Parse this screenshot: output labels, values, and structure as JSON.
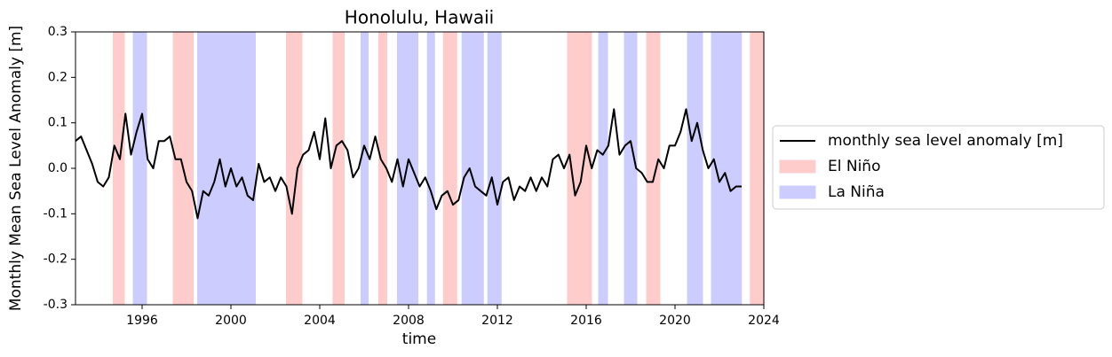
{
  "chart_data": {
    "type": "line",
    "title": "Honolulu, Hawaii",
    "xlabel": "time",
    "ylabel": "Monthly Mean Sea Level Anomaly [m]",
    "xlim": [
      1993,
      2024
    ],
    "ylim": [
      -0.3,
      0.3
    ],
    "xticks": [
      1996,
      2000,
      2004,
      2008,
      2012,
      2016,
      2020,
      2024
    ],
    "yticks": [
      -0.3,
      -0.2,
      -0.1,
      {
        "value": 0,
        "label": "0.0"
      },
      0.1,
      0.2,
      0.3
    ],
    "legend": "right",
    "x": [
      1993.0,
      1993.25,
      1993.5,
      1993.75,
      1994.0,
      1994.25,
      1994.5,
      1994.75,
      1995.0,
      1995.25,
      1995.5,
      1995.75,
      1996.0,
      1996.25,
      1996.5,
      1996.75,
      1997.0,
      1997.25,
      1997.5,
      1997.75,
      1998.0,
      1998.25,
      1998.5,
      1998.75,
      1999.0,
      1999.25,
      1999.5,
      1999.75,
      2000.0,
      2000.25,
      2000.5,
      2000.75,
      2001.0,
      2001.25,
      2001.5,
      2001.75,
      2002.0,
      2002.25,
      2002.5,
      2002.75,
      2003.0,
      2003.25,
      2003.5,
      2003.75,
      2004.0,
      2004.25,
      2004.5,
      2004.75,
      2005.0,
      2005.25,
      2005.5,
      2005.75,
      2006.0,
      2006.25,
      2006.5,
      2006.75,
      2007.0,
      2007.25,
      2007.5,
      2007.75,
      2008.0,
      2008.25,
      2008.5,
      2008.75,
      2009.0,
      2009.25,
      2009.5,
      2009.75,
      2010.0,
      2010.25,
      2010.5,
      2010.75,
      2011.0,
      2011.25,
      2011.5,
      2011.75,
      2012.0,
      2012.25,
      2012.5,
      2012.75,
      2013.0,
      2013.25,
      2013.5,
      2013.75,
      2014.0,
      2014.25,
      2014.5,
      2014.75,
      2015.0,
      2015.25,
      2015.5,
      2015.75,
      2016.0,
      2016.25,
      2016.5,
      2016.75,
      2017.0,
      2017.25,
      2017.5,
      2017.75,
      2018.0,
      2018.25,
      2018.5,
      2018.75,
      2019.0,
      2019.25,
      2019.5,
      2019.75,
      2020.0,
      2020.25,
      2020.5,
      2020.75,
      2021.0,
      2021.25,
      2021.5,
      2021.75,
      2022.0,
      2022.25,
      2022.5,
      2022.75,
      2023.0
    ],
    "series": [
      {
        "name": "monthly sea level anomaly [m]",
        "color": "#000000",
        "values": [
          0.06,
          0.07,
          0.04,
          0.01,
          -0.03,
          -0.04,
          -0.02,
          0.05,
          0.02,
          0.12,
          0.03,
          0.08,
          0.12,
          0.02,
          0.0,
          0.06,
          0.06,
          0.07,
          0.02,
          0.02,
          -0.03,
          -0.05,
          -0.11,
          -0.05,
          -0.06,
          -0.03,
          0.02,
          -0.04,
          0.0,
          -0.04,
          -0.02,
          -0.06,
          -0.07,
          0.01,
          -0.03,
          -0.02,
          -0.05,
          -0.02,
          -0.04,
          -0.1,
          0.0,
          0.03,
          0.04,
          0.08,
          0.02,
          0.11,
          0.0,
          0.05,
          0.06,
          0.04,
          -0.02,
          0.0,
          0.05,
          0.02,
          0.07,
          0.02,
          0.0,
          -0.03,
          0.02,
          -0.04,
          0.02,
          -0.01,
          -0.04,
          -0.02,
          -0.05,
          -0.09,
          -0.06,
          -0.05,
          -0.08,
          -0.07,
          -0.02,
          0.0,
          -0.04,
          -0.05,
          -0.06,
          -0.02,
          -0.08,
          -0.03,
          -0.02,
          -0.07,
          -0.04,
          -0.05,
          -0.02,
          -0.05,
          -0.02,
          -0.04,
          0.02,
          0.03,
          0.0,
          0.03,
          -0.06,
          -0.03,
          0.05,
          0.0,
          0.04,
          0.03,
          0.05,
          0.13,
          0.03,
          0.05,
          0.06,
          0.0,
          -0.01,
          -0.03,
          -0.03,
          0.02,
          0.0,
          0.05,
          0.05,
          0.08,
          0.13,
          0.06,
          0.1,
          0.04,
          0.0,
          0.02,
          -0.03,
          -0.01,
          -0.05,
          -0.04,
          -0.04
        ]
      }
    ],
    "spans": [
      {
        "name": "El Niño",
        "color": "#ffcccc",
        "ranges": [
          [
            1994.7,
            1995.2
          ],
          [
            1997.4,
            1998.3
          ],
          [
            2002.5,
            2003.2
          ],
          [
            2004.6,
            2005.1
          ],
          [
            2006.66,
            2007.02
          ],
          [
            2009.57,
            2010.17
          ],
          [
            2015.16,
            2016.24
          ],
          [
            2018.72,
            2019.32
          ],
          [
            2023.39,
            2024
          ]
        ]
      },
      {
        "name": "La Niña",
        "color": "#ccccff",
        "ranges": [
          [
            1995.6,
            1996.2
          ],
          [
            1998.5,
            2001.1
          ],
          [
            2005.86,
            2006.18
          ],
          [
            2007.5,
            2008.42
          ],
          [
            2008.85,
            2009.17
          ],
          [
            2010.41,
            2011.37
          ],
          [
            2011.57,
            2012.17
          ],
          [
            2016.56,
            2016.96
          ],
          [
            2017.72,
            2018.28
          ],
          [
            2020.56,
            2021.24
          ],
          [
            2021.64,
            2022.99
          ]
        ]
      }
    ]
  }
}
